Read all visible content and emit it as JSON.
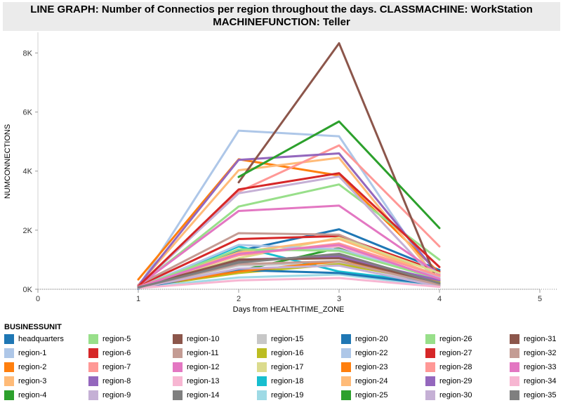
{
  "title_line1": "LINE GRAPH: Number of Connectios per region throughout the days. CLASSMACHINE: WorkStation",
  "title_line2": "MACHINEFUNCTION: Teller",
  "legend_title": "BUSINESSUNIT",
  "chart_data": {
    "type": "line",
    "xlabel": "Days from HEALTHTIME_ZONE",
    "ylabel": "NUMCONNECTIONS",
    "xlim": [
      0,
      5
    ],
    "ylim": [
      0,
      8700
    ],
    "xticks": [
      "0",
      "1",
      "2",
      "3",
      "4",
      "5"
    ],
    "yticks": [
      {
        "value": 0,
        "label": "0K"
      },
      {
        "value": 2000,
        "label": "2K"
      },
      {
        "value": 4000,
        "label": "4K"
      },
      {
        "value": 6000,
        "label": "6K"
      },
      {
        "value": 8000,
        "label": "8K"
      }
    ],
    "grid": false,
    "legend_position": "bottom",
    "series": [
      {
        "name": "headquarters",
        "color": "#1f77b4",
        "x": [
          1,
          2,
          3,
          4
        ],
        "y": [
          20,
          1300,
          2030,
          650
        ]
      },
      {
        "name": "region-1",
        "color": "#aec7e8",
        "x": [
          1,
          2,
          3,
          4
        ],
        "y": [
          80,
          5370,
          5180,
          150
        ]
      },
      {
        "name": "region-2",
        "color": "#ff7f0e",
        "x": [
          1,
          2,
          3,
          4
        ],
        "y": [
          330,
          4400,
          3850,
          550
        ]
      },
      {
        "name": "region-3",
        "color": "#ffbb78",
        "x": [
          1,
          2,
          3,
          4
        ],
        "y": [
          140,
          4030,
          4450,
          250
        ]
      },
      {
        "name": "region-4",
        "color": "#2ca02c",
        "x": [
          1,
          2,
          3,
          4
        ],
        "y": [
          60,
          620,
          1400,
          350
        ]
      },
      {
        "name": "region-5",
        "color": "#98df8a",
        "x": [
          1,
          2,
          3,
          4
        ],
        "y": [
          100,
          2800,
          3550,
          1000
        ]
      },
      {
        "name": "region-6",
        "color": "#d62728",
        "x": [
          1,
          2,
          3,
          4
        ],
        "y": [
          110,
          1700,
          1800,
          600
        ]
      },
      {
        "name": "region-7",
        "color": "#ff9896",
        "x": [
          1,
          2,
          3,
          4
        ],
        "y": [
          120,
          3300,
          4870,
          1450
        ]
      },
      {
        "name": "region-8",
        "color": "#9467bd",
        "x": [
          1,
          2,
          3,
          4
        ],
        "y": [
          130,
          4380,
          4600,
          450
        ]
      },
      {
        "name": "region-9",
        "color": "#c5b0d5",
        "x": [
          1,
          2,
          3,
          4
        ],
        "y": [
          90,
          3250,
          3820,
          200
        ]
      },
      {
        "name": "region-10",
        "color": "#8c564b",
        "x": [
          1,
          2,
          3,
          4
        ],
        "y": [
          null,
          3620,
          8330,
          100
        ]
      },
      {
        "name": "region-11",
        "color": "#c49c94",
        "x": [
          1,
          2,
          3,
          4
        ],
        "y": [
          150,
          1900,
          1850,
          400
        ]
      },
      {
        "name": "region-12",
        "color": "#e377c2",
        "x": [
          1,
          2,
          3,
          4
        ],
        "y": [
          120,
          2650,
          2830,
          500
        ]
      },
      {
        "name": "region-13",
        "color": "#f7b6d2",
        "x": [
          1,
          2,
          3,
          4
        ],
        "y": [
          80,
          1200,
          1450,
          300
        ]
      },
      {
        "name": "region-14",
        "color": "#7f7f7f",
        "x": [
          1,
          2,
          3,
          4
        ],
        "y": [
          100,
          950,
          1150,
          250
        ]
      },
      {
        "name": "region-15",
        "color": "#c7c7c7",
        "x": [
          1,
          2,
          3,
          4
        ],
        "y": [
          60,
          800,
          900,
          150
        ]
      },
      {
        "name": "region-16",
        "color": "#bcbd22",
        "x": [
          1,
          2,
          3,
          4
        ],
        "y": [
          70,
          550,
          850,
          250
        ]
      },
      {
        "name": "region-17",
        "color": "#dbdb8d",
        "x": [
          1,
          2,
          3,
          4
        ],
        "y": [
          80,
          1050,
          1750,
          550
        ]
      },
      {
        "name": "region-18",
        "color": "#17becf",
        "x": [
          1,
          2,
          3,
          4
        ],
        "y": [
          60,
          1450,
          600,
          200
        ]
      },
      {
        "name": "region-19",
        "color": "#9edae5",
        "x": [
          1,
          2,
          3,
          4
        ],
        "y": [
          50,
          400,
          500,
          100
        ]
      },
      {
        "name": "region-20",
        "color": "#1f77b4",
        "x": [
          1,
          2,
          3,
          4
        ],
        "y": [
          40,
          650,
          550,
          150
        ]
      },
      {
        "name": "region-22",
        "color": "#aec7e8",
        "x": [
          1,
          2,
          3,
          4
        ],
        "y": [
          60,
          1500,
          1350,
          400
        ]
      },
      {
        "name": "region-23",
        "color": "#ff7f0e",
        "x": [
          1,
          2,
          3,
          4
        ],
        "y": [
          90,
          600,
          950,
          300
        ]
      },
      {
        "name": "region-24",
        "color": "#ffbb78",
        "x": [
          1,
          2,
          3,
          4
        ],
        "y": [
          80,
          1250,
          1700,
          450
        ]
      },
      {
        "name": "region-25",
        "color": "#2ca02c",
        "x": [
          1,
          2,
          3,
          4
        ],
        "y": [
          null,
          3800,
          5680,
          2070
        ]
      },
      {
        "name": "region-26",
        "color": "#98df8a",
        "x": [
          1,
          2,
          3,
          4
        ],
        "y": [
          70,
          1350,
          1300,
          350
        ]
      },
      {
        "name": "region-27",
        "color": "#d62728",
        "x": [
          1,
          2,
          3,
          4
        ],
        "y": [
          100,
          3380,
          3930,
          750
        ]
      },
      {
        "name": "region-28",
        "color": "#ff9896",
        "x": [
          1,
          2,
          3,
          4
        ],
        "y": [
          90,
          1150,
          1550,
          450
        ]
      },
      {
        "name": "region-29",
        "color": "#9467bd",
        "x": [
          1,
          2,
          3,
          4
        ],
        "y": [
          70,
          1000,
          1100,
          300
        ]
      },
      {
        "name": "region-30",
        "color": "#c5b0d5",
        "x": [
          1,
          2,
          3,
          4
        ],
        "y": [
          50,
          700,
          800,
          100
        ]
      },
      {
        "name": "region-31",
        "color": "#8c564b",
        "x": [
          1,
          2,
          3,
          4
        ],
        "y": [
          80,
          1000,
          1050,
          200
        ]
      },
      {
        "name": "region-32",
        "color": "#c49c94",
        "x": [
          1,
          2,
          3,
          4
        ],
        "y": [
          60,
          850,
          950,
          150
        ]
      },
      {
        "name": "region-33",
        "color": "#e377c2",
        "x": [
          1,
          2,
          3,
          4
        ],
        "y": [
          70,
          1200,
          1500,
          350
        ]
      },
      {
        "name": "region-34",
        "color": "#f7b6d2",
        "x": [
          1,
          2,
          3,
          4
        ],
        "y": [
          40,
          300,
          380,
          80
        ]
      },
      {
        "name": "region-35",
        "color": "#7f7f7f",
        "x": [
          1,
          2,
          3,
          4
        ],
        "y": [
          60,
          900,
          1200,
          200
        ]
      }
    ]
  }
}
